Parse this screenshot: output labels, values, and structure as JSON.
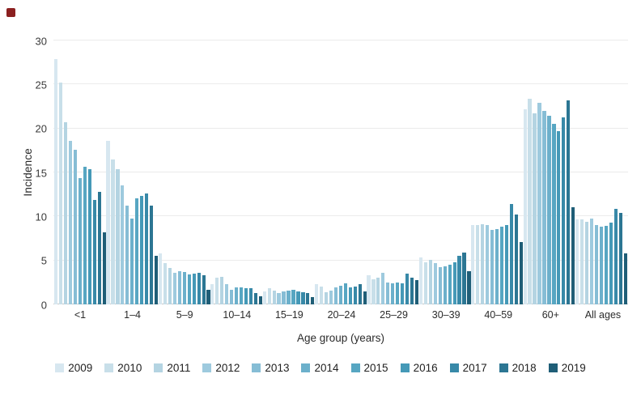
{
  "brand": {
    "color": "#8b2020"
  },
  "chart_data": {
    "type": "bar",
    "title": "",
    "xlabel": "Age group (years)",
    "ylabel": "Incidence",
    "ylim": [
      0,
      30
    ],
    "yticks": [
      0,
      5,
      10,
      15,
      20,
      25,
      30
    ],
    "grid": true,
    "legend_position": "bottom",
    "categories": [
      "<1",
      "1–4",
      "5–9",
      "10–14",
      "15–19",
      "20–24",
      "25–29",
      "30–39",
      "40–59",
      "60+",
      "All ages"
    ],
    "series": [
      {
        "name": "2009",
        "color": "#d7e7f0",
        "values": [
          27.9,
          18.6,
          5.8,
          2.3,
          1.5,
          2.3,
          3.3,
          5.3,
          9.0,
          22.2,
          9.7
        ]
      },
      {
        "name": "2010",
        "color": "#c8dfe9",
        "values": [
          25.2,
          16.5,
          4.7,
          3.0,
          1.8,
          2.0,
          2.9,
          4.8,
          9.0,
          23.4,
          9.7
        ]
      },
      {
        "name": "2011",
        "color": "#b4d4e2",
        "values": [
          20.7,
          15.4,
          4.1,
          3.1,
          1.6,
          1.4,
          3.0,
          5.1,
          9.1,
          21.7,
          9.4
        ]
      },
      {
        "name": "2012",
        "color": "#9ecade",
        "values": [
          18.6,
          13.5,
          3.6,
          2.3,
          1.3,
          1.6,
          3.6,
          4.7,
          9.0,
          22.9,
          9.8
        ]
      },
      {
        "name": "2013",
        "color": "#86bdd5",
        "values": [
          17.6,
          11.2,
          3.8,
          1.7,
          1.5,
          1.9,
          2.5,
          4.2,
          8.5,
          22.0,
          9.0
        ]
      },
      {
        "name": "2014",
        "color": "#6cb0cb",
        "values": [
          14.4,
          9.8,
          3.7,
          1.9,
          1.6,
          2.1,
          2.4,
          4.3,
          8.6,
          21.4,
          8.8
        ]
      },
      {
        "name": "2015",
        "color": "#57a6c2",
        "values": [
          15.6,
          12.1,
          3.4,
          1.9,
          1.7,
          2.4,
          2.5,
          4.5,
          8.8,
          20.5,
          8.9
        ]
      },
      {
        "name": "2016",
        "color": "#4599b7",
        "values": [
          15.4,
          12.3,
          3.5,
          1.8,
          1.5,
          1.9,
          2.4,
          4.8,
          9.0,
          19.7,
          9.3
        ]
      },
      {
        "name": "2017",
        "color": "#3889a8",
        "values": [
          11.9,
          12.6,
          3.6,
          1.8,
          1.4,
          2.0,
          3.5,
          5.5,
          11.4,
          21.3,
          10.9
        ]
      },
      {
        "name": "2018",
        "color": "#2c7693",
        "values": [
          12.8,
          11.2,
          3.3,
          1.3,
          1.3,
          2.3,
          3.0,
          5.9,
          10.2,
          23.2,
          10.4
        ]
      },
      {
        "name": "2019",
        "color": "#1f5e77",
        "values": [
          8.2,
          5.5,
          1.7,
          0.9,
          0.8,
          1.5,
          2.8,
          3.8,
          7.1,
          11.0,
          5.8
        ]
      }
    ]
  }
}
